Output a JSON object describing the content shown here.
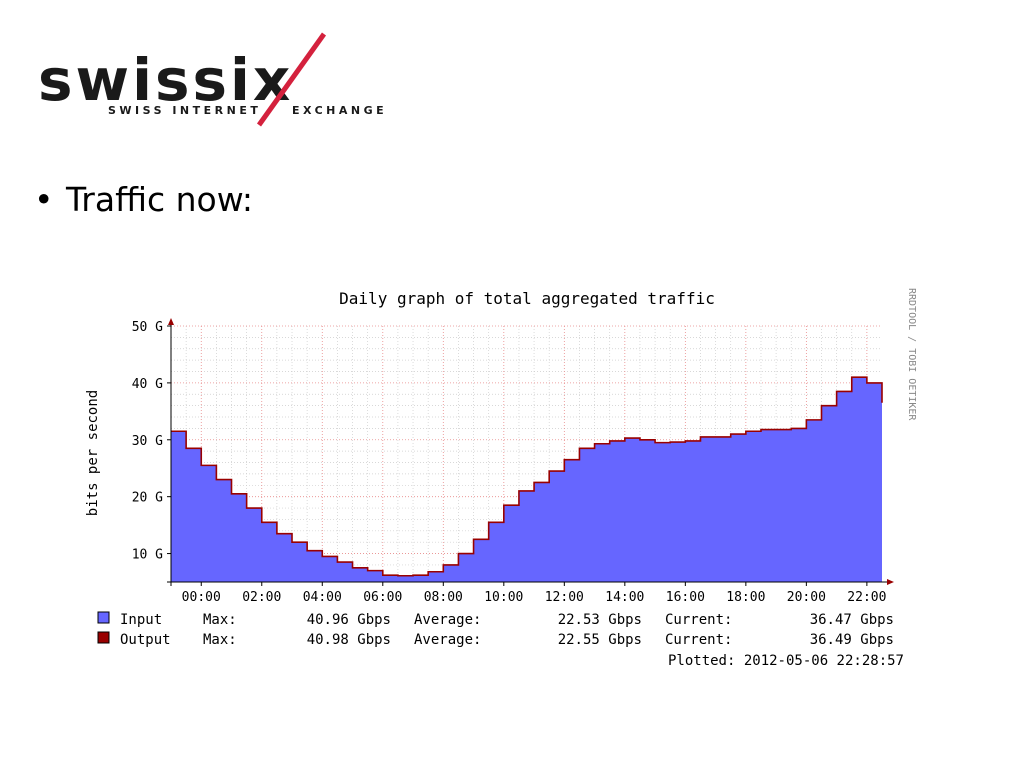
{
  "logo": {
    "wordmark": "swissix",
    "tagline_left": "SWISS INTERNET",
    "tagline_right": "EXCHANGE",
    "colors": {
      "text": "#1a1a1a",
      "slash": "#d4213d"
    }
  },
  "bullet": {
    "symbol": "•",
    "text": "Traffic now:"
  },
  "chart_data": {
    "type": "area",
    "title": "Daily graph of total aggregated traffic",
    "ylabel": "bits per second",
    "watermark": "RRDTOOL / TOBI OETIKER",
    "y_ticks": [
      "50 G",
      "40 G",
      "30 G",
      "20 G",
      "10 G"
    ],
    "y_tick_values": [
      50,
      40,
      30,
      20,
      10
    ],
    "x_ticks": [
      "00:00",
      "02:00",
      "04:00",
      "06:00",
      "08:00",
      "10:00",
      "12:00",
      "14:00",
      "16:00",
      "18:00",
      "20:00",
      "22:00"
    ],
    "x_tick_hours": [
      0,
      2,
      4,
      6,
      8,
      10,
      12,
      14,
      16,
      18,
      20,
      22
    ],
    "xlim": [
      -1,
      22.5
    ],
    "ylim": [
      5,
      50
    ],
    "grid": true,
    "series": [
      {
        "name": "Input",
        "color": "#6666ff",
        "x": [
          -1,
          -0.5,
          0,
          0.5,
          1,
          1.5,
          2,
          2.5,
          3,
          3.5,
          4,
          4.5,
          5,
          5.5,
          6,
          6.5,
          7,
          7.5,
          8,
          8.5,
          9,
          9.5,
          10,
          10.5,
          11,
          11.5,
          12,
          12.5,
          13,
          13.5,
          14,
          14.5,
          15,
          15.5,
          16,
          16.5,
          17,
          17.5,
          18,
          18.5,
          19,
          19.5,
          20,
          20.5,
          21,
          21.5,
          22,
          22.5
        ],
        "values": [
          31.5,
          28.5,
          25.5,
          23.0,
          20.5,
          18.0,
          15.5,
          13.5,
          12.0,
          10.5,
          9.5,
          8.5,
          7.5,
          7.0,
          6.2,
          6.1,
          6.2,
          6.8,
          8.0,
          10.0,
          12.5,
          15.5,
          18.5,
          21.0,
          22.5,
          24.5,
          26.5,
          28.5,
          29.3,
          29.8,
          30.3,
          30.0,
          29.5,
          29.6,
          29.8,
          30.5,
          30.5,
          31.0,
          31.5,
          31.8,
          31.8,
          32.0,
          33.5,
          36.0,
          38.5,
          41.0,
          40.0,
          36.5
        ]
      },
      {
        "name": "Output",
        "color": "#990000",
        "x": [
          -1,
          -0.5,
          0,
          0.5,
          1,
          1.5,
          2,
          2.5,
          3,
          3.5,
          4,
          4.5,
          5,
          5.5,
          6,
          6.5,
          7,
          7.5,
          8,
          8.5,
          9,
          9.5,
          10,
          10.5,
          11,
          11.5,
          12,
          12.5,
          13,
          13.5,
          14,
          14.5,
          15,
          15.5,
          16,
          16.5,
          17,
          17.5,
          18,
          18.5,
          19,
          19.5,
          20,
          20.5,
          21,
          21.5,
          22,
          22.5
        ],
        "values": [
          31.5,
          28.5,
          25.5,
          23.0,
          20.5,
          18.0,
          15.5,
          13.5,
          12.0,
          10.5,
          9.5,
          8.5,
          7.5,
          7.0,
          6.2,
          6.1,
          6.2,
          6.8,
          8.0,
          10.0,
          12.5,
          15.5,
          18.5,
          21.0,
          22.5,
          24.5,
          26.5,
          28.5,
          29.3,
          29.8,
          30.3,
          30.0,
          29.5,
          29.6,
          29.8,
          30.5,
          30.5,
          31.0,
          31.5,
          31.8,
          31.8,
          32.0,
          33.5,
          36.0,
          38.5,
          41.0,
          40.0,
          36.5
        ]
      }
    ],
    "legend": [
      {
        "name": "Input",
        "color": "#6666ff",
        "max_label": "Max:",
        "max": "40.96 Gbps",
        "avg_label": "Average:",
        "avg": "22.53 Gbps",
        "cur_label": "Current:",
        "cur": "36.47 Gbps"
      },
      {
        "name": "Output",
        "color": "#990000",
        "max_label": "Max:",
        "max": "40.98 Gbps",
        "avg_label": "Average:",
        "avg": "22.55 Gbps",
        "cur_label": "Current:",
        "cur": "36.49 Gbps"
      }
    ],
    "plotted": "Plotted: 2012-05-06 22:28:57"
  }
}
